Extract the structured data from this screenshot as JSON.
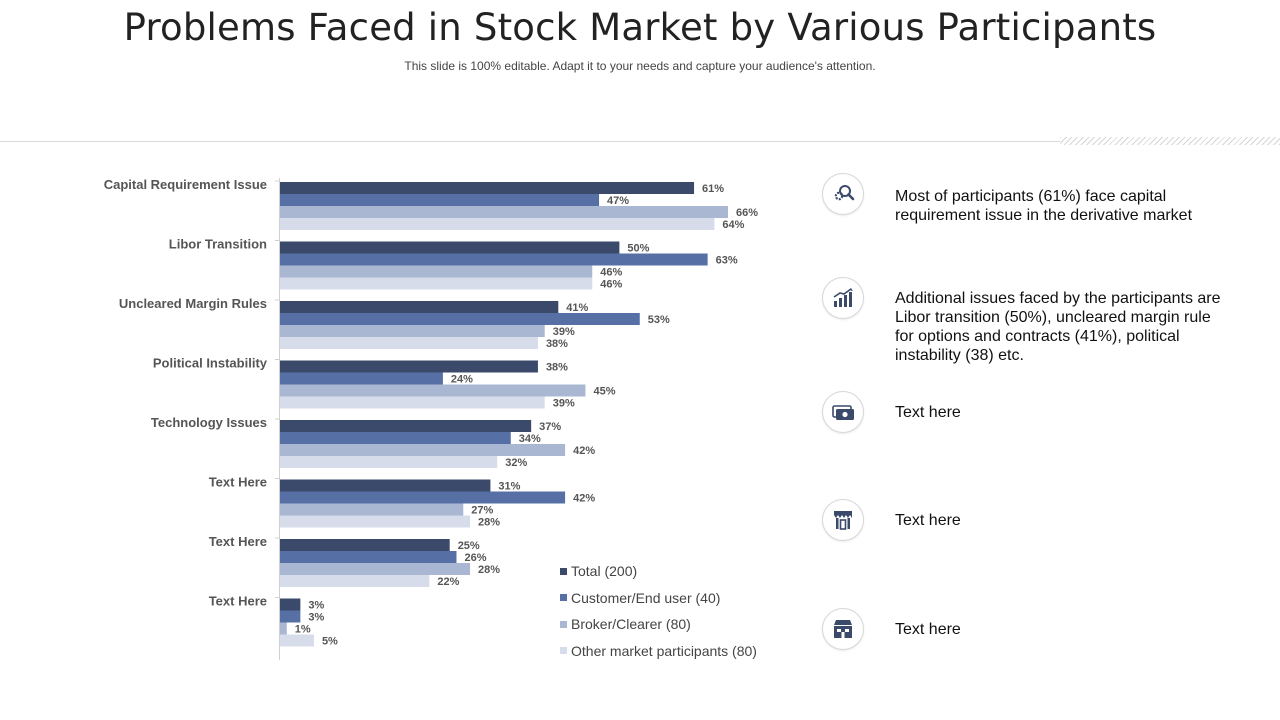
{
  "header": {
    "title": "Problems Faced in Stock Market by Various Participants",
    "subtitle": "This slide is 100% editable. Adapt it to your needs and capture your audience's attention."
  },
  "colors": {
    "series": [
      "#3b4a6b",
      "#5670a6",
      "#aab7d3",
      "#d6dcea"
    ],
    "icon": "#3b4a6b"
  },
  "chart_data": {
    "type": "bar",
    "orientation": "horizontal",
    "categories": [
      "Capital Requirement Issue",
      "Libor Transition",
      "Uncleared Margin Rules",
      "Political Instability",
      "Technology Issues",
      "Text Here",
      "Text Here",
      "Text Here"
    ],
    "series": [
      {
        "name": "Total (200)",
        "values": [
          61,
          50,
          41,
          38,
          37,
          31,
          25,
          3
        ]
      },
      {
        "name": "Customer/End user (40)",
        "values": [
          47,
          63,
          53,
          24,
          34,
          42,
          26,
          3
        ]
      },
      {
        "name": "Broker/Clearer (80)",
        "values": [
          66,
          46,
          39,
          45,
          42,
          27,
          28,
          1
        ]
      },
      {
        "name": "Other market participants (80)",
        "values": [
          64,
          46,
          38,
          39,
          32,
          28,
          22,
          5
        ]
      }
    ],
    "value_suffix": "%",
    "xlim": [
      0,
      70
    ],
    "legend_position": "bottom-right",
    "grid": false
  },
  "insights": [
    {
      "icon": "search-gear-icon",
      "text": "Most of participants (61%) face capital requirement issue in the derivative market"
    },
    {
      "icon": "bar-chart-icon",
      "text": "Additional issues faced by the participants are Libor transition (50%), uncleared margin rule for options and contracts (41%), political instability (38) etc."
    },
    {
      "icon": "money-icon",
      "text": "Text here"
    },
    {
      "icon": "shop-icon",
      "text": "Text here"
    },
    {
      "icon": "store-icon",
      "text": "Text here"
    }
  ]
}
